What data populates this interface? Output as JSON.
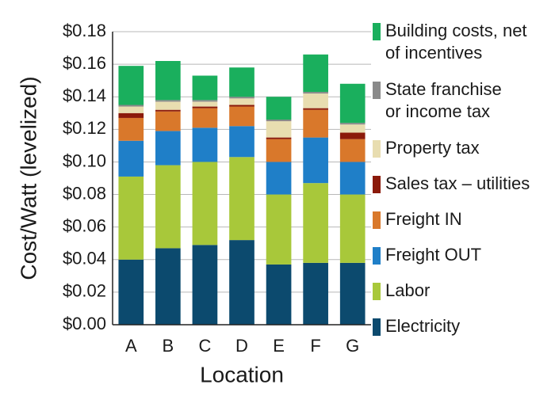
{
  "chart_data": {
    "type": "bar",
    "stacked": true,
    "xlabel": "Location",
    "ylabel": "Cost/Watt (levelized)",
    "ylim": [
      0,
      0.18
    ],
    "yticks": [
      "$0.00",
      "$0.02",
      "$0.04",
      "$0.06",
      "$0.08",
      "$0.10",
      "$0.12",
      "$0.14",
      "$0.16",
      "$0.18"
    ],
    "grid": true,
    "legend_position": "right",
    "categories": [
      "A",
      "B",
      "C",
      "D",
      "E",
      "F",
      "G"
    ],
    "series": [
      {
        "name": "Electricity",
        "color": "#0c4a6e",
        "values": [
          0.04,
          0.047,
          0.049,
          0.052,
          0.037,
          0.038,
          0.038
        ]
      },
      {
        "name": "Labor",
        "color": "#a8c83a",
        "values": [
          0.051,
          0.051,
          0.051,
          0.051,
          0.043,
          0.049,
          0.042
        ]
      },
      {
        "name": "Freight OUT",
        "color": "#1f7fc8",
        "values": [
          0.022,
          0.021,
          0.021,
          0.019,
          0.02,
          0.028,
          0.02
        ]
      },
      {
        "name": "Freight IN",
        "color": "#d9782b",
        "values": [
          0.014,
          0.012,
          0.012,
          0.012,
          0.014,
          0.017,
          0.014
        ]
      },
      {
        "name": "Sales tax – utilities",
        "color": "#8b1a0a",
        "values": [
          0.003,
          0.001,
          0.001,
          0.001,
          0.001,
          0.001,
          0.004
        ]
      },
      {
        "name": "Property tax",
        "color": "#e8ddb0",
        "values": [
          0.004,
          0.005,
          0.003,
          0.004,
          0.01,
          0.009,
          0.005
        ]
      },
      {
        "name": "State franchise\nor income tax",
        "color": "#8a8a8a",
        "values": [
          0.001,
          0.001,
          0.001,
          0.001,
          0.001,
          0.001,
          0.001
        ]
      },
      {
        "name": "Building costs, net\nof incentives",
        "color": "#1aaf5d",
        "values": [
          0.024,
          0.024,
          0.015,
          0.018,
          0.014,
          0.023,
          0.024
        ]
      }
    ]
  }
}
